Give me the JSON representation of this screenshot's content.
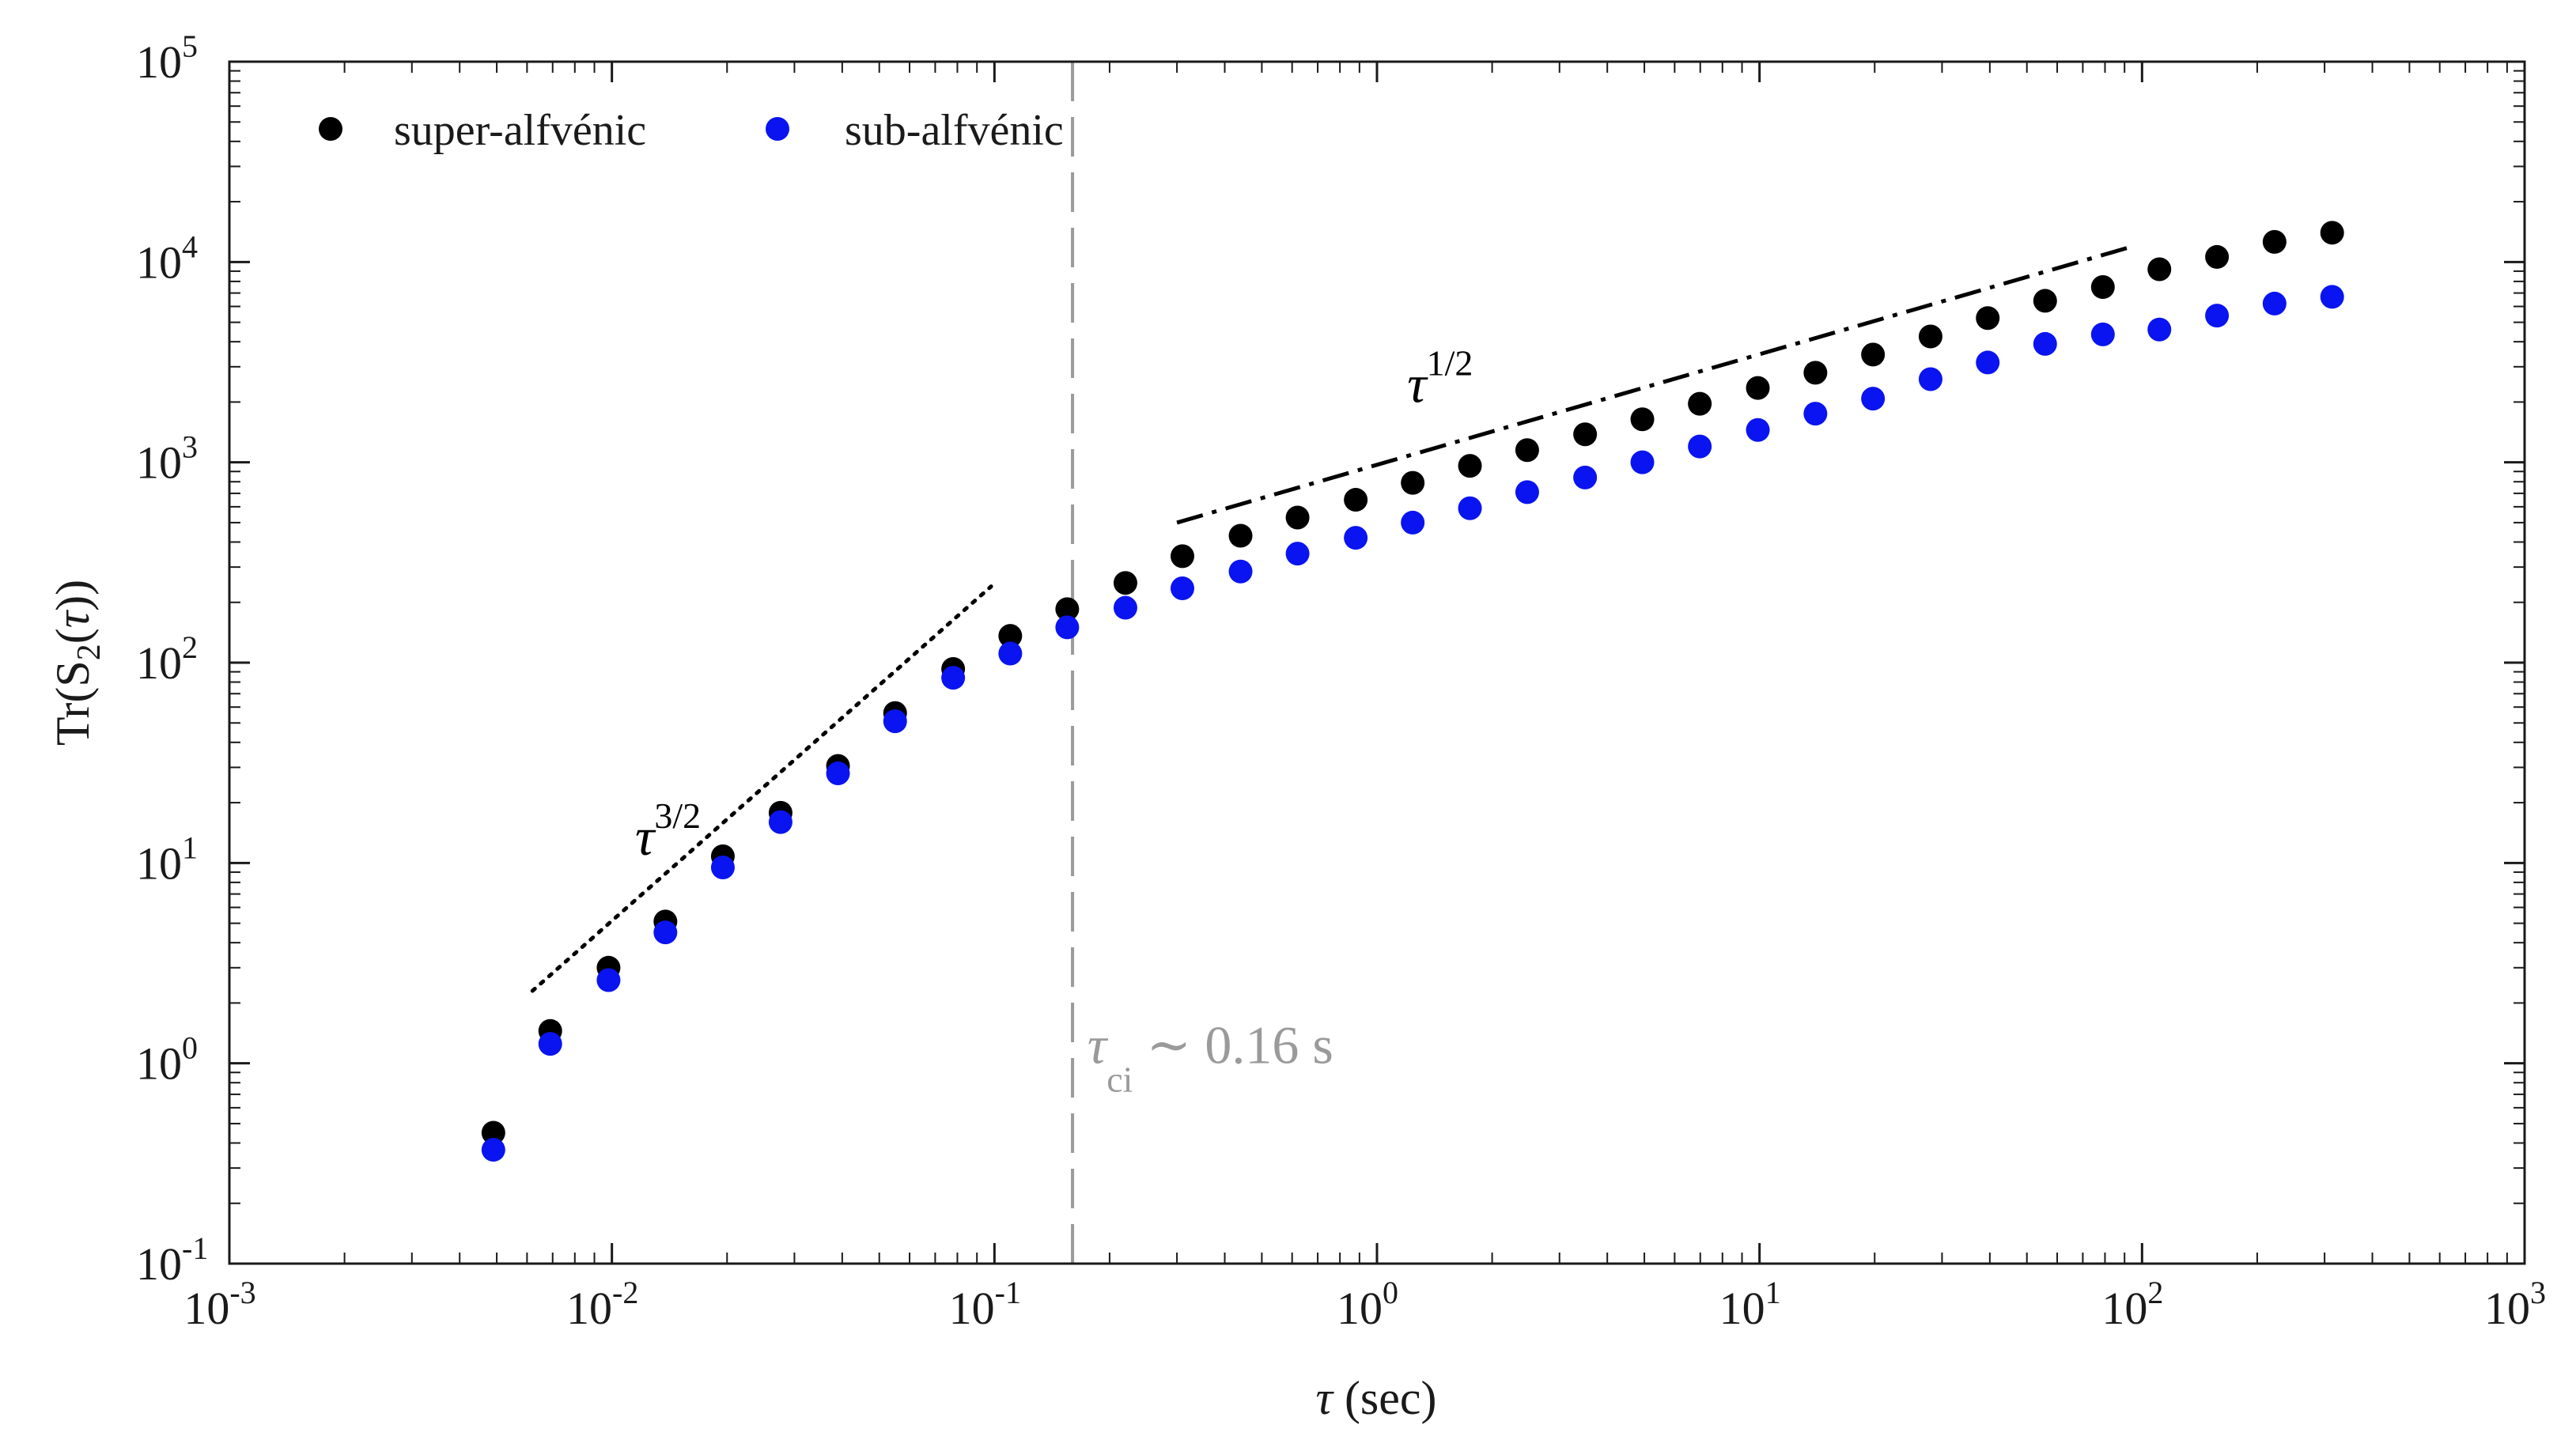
{
  "chart_data": {
    "type": "scatter",
    "x_scale": "log",
    "y_scale": "log",
    "xlim": [
      0.001,
      1000
    ],
    "ylim": [
      0.1,
      100000
    ],
    "xlabel_symbol": "τ",
    "xlabel_unit": " (sec)",
    "ylabel_prefix": "Tr(S",
    "ylabel_sub": "2",
    "ylabel_mid": "(",
    "ylabel_symbol": "τ",
    "ylabel_suffix": "))",
    "x_ticks": [
      {
        "value": 0.001,
        "base": "10",
        "exp": "-3"
      },
      {
        "value": 0.01,
        "base": "10",
        "exp": "-2"
      },
      {
        "value": 0.1,
        "base": "10",
        "exp": "-1"
      },
      {
        "value": 1,
        "base": "10",
        "exp": "0"
      },
      {
        "value": 10,
        "base": "10",
        "exp": "1"
      },
      {
        "value": 100,
        "base": "10",
        "exp": "2"
      },
      {
        "value": 1000,
        "base": "10",
        "exp": "3"
      }
    ],
    "y_ticks": [
      {
        "value": 0.1,
        "base": "10",
        "exp": "-1"
      },
      {
        "value": 1,
        "base": "10",
        "exp": "0"
      },
      {
        "value": 10,
        "base": "10",
        "exp": "1"
      },
      {
        "value": 100,
        "base": "10",
        "exp": "2"
      },
      {
        "value": 1000,
        "base": "10",
        "exp": "3"
      },
      {
        "value": 10000,
        "base": "10",
        "exp": "4"
      },
      {
        "value": 100000,
        "base": "10",
        "exp": "5"
      }
    ],
    "legend_position": "top-left",
    "series": [
      {
        "name": "super-alfvénic",
        "color": "#000000",
        "points": [
          [
            0.0049,
            0.45
          ],
          [
            0.0069,
            1.45
          ],
          [
            0.0098,
            3.0
          ],
          [
            0.0138,
            5.1
          ],
          [
            0.0195,
            10.8
          ],
          [
            0.0276,
            17.8
          ],
          [
            0.039,
            30.5
          ],
          [
            0.055,
            56.0
          ],
          [
            0.078,
            93.0
          ],
          [
            0.11,
            136.0
          ],
          [
            0.155,
            185.0
          ],
          [
            0.22,
            250.0
          ],
          [
            0.31,
            340.0
          ],
          [
            0.44,
            430.0
          ],
          [
            0.62,
            530.0
          ],
          [
            0.88,
            650.0
          ],
          [
            1.24,
            790.0
          ],
          [
            1.75,
            960.0
          ],
          [
            2.47,
            1150.0
          ],
          [
            3.5,
            1380.0
          ],
          [
            4.94,
            1640.0
          ],
          [
            6.98,
            1960.0
          ],
          [
            9.9,
            2350.0
          ],
          [
            14.0,
            2800.0
          ],
          [
            19.8,
            3450.0
          ],
          [
            28.0,
            4250.0
          ],
          [
            39.5,
            5250.0
          ],
          [
            55.8,
            6400.0
          ],
          [
            79.0,
            7500.0
          ],
          [
            111.0,
            9200.0
          ],
          [
            157.0,
            10600.0
          ],
          [
            222.0,
            12600.0
          ],
          [
            314.0,
            14000.0
          ]
        ]
      },
      {
        "name": "sub-alfvénic",
        "color": "#0a14f0",
        "points": [
          [
            0.0049,
            0.37
          ],
          [
            0.0069,
            1.25
          ],
          [
            0.0098,
            2.6
          ],
          [
            0.0138,
            4.5
          ],
          [
            0.0195,
            9.5
          ],
          [
            0.0276,
            16.0
          ],
          [
            0.039,
            28.0
          ],
          [
            0.055,
            51.0
          ],
          [
            0.078,
            84.0
          ],
          [
            0.11,
            111.0
          ],
          [
            0.155,
            150.0
          ],
          [
            0.22,
            188.0
          ],
          [
            0.31,
            235.0
          ],
          [
            0.44,
            285.0
          ],
          [
            0.62,
            350.0
          ],
          [
            0.88,
            420.0
          ],
          [
            1.24,
            500.0
          ],
          [
            1.75,
            590.0
          ],
          [
            2.47,
            710.0
          ],
          [
            3.5,
            840.0
          ],
          [
            4.94,
            1000.0
          ],
          [
            6.98,
            1200.0
          ],
          [
            9.9,
            1450.0
          ],
          [
            14.0,
            1750.0
          ],
          [
            19.8,
            2080.0
          ],
          [
            28.0,
            2600.0
          ],
          [
            39.5,
            3150.0
          ],
          [
            55.8,
            3900.0
          ],
          [
            79.0,
            4350.0
          ],
          [
            111.0,
            4600.0
          ],
          [
            157.0,
            5400.0
          ],
          [
            222.0,
            6200.0
          ],
          [
            314.0,
            6700.0
          ]
        ]
      }
    ],
    "reference_lines": [
      {
        "name": "tau-3-2-line",
        "style": "dotted",
        "color": "#000000",
        "x": [
          0.0062,
          0.098
        ],
        "y": [
          2.3,
          240
        ]
      },
      {
        "name": "tau-1-2-line",
        "style": "dashdot",
        "color": "#000000",
        "x": [
          0.3,
          95
        ],
        "y": [
          500,
          12000
        ]
      },
      {
        "name": "tau-ci-line",
        "style": "dashed",
        "color": "#9a9a9a",
        "x": [
          0.16,
          0.16
        ],
        "y": [
          0.1,
          100000
        ]
      }
    ],
    "annotations": {
      "tau_3_2": {
        "symbol": "τ",
        "exp": "3/2",
        "x": 0.0115,
        "y": 11
      },
      "tau_1_2": {
        "symbol": "τ",
        "exp": "1/2",
        "x": 1.2,
        "y": 2000
      },
      "tau_ci": {
        "symbol": "τ",
        "sub": "ci",
        "text": " ∼ 0.16 s",
        "x": 0.175,
        "y": 1.0,
        "color": "#9a9a9a"
      }
    }
  }
}
